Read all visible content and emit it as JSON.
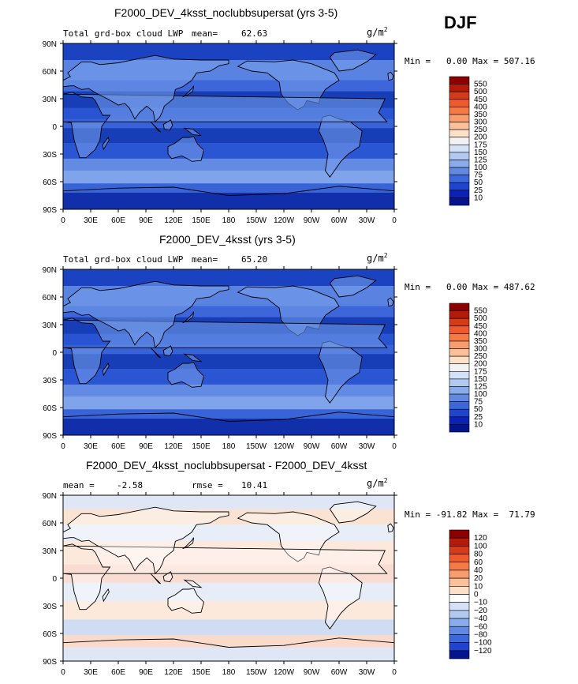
{
  "season": "DJF",
  "xticks": [
    "0",
    "30E",
    "60E",
    "90E",
    "120E",
    "150E",
    "180",
    "150W",
    "120W",
    "90W",
    "60W",
    "30W",
    "0"
  ],
  "yticks": [
    "90N",
    "60N",
    "30N",
    "0",
    "30S",
    "60S",
    "90S"
  ],
  "panels": [
    {
      "title": "F2000_DEV_4ksst_noclubbsupersat (yrs 3-5)",
      "left_label": "Total grd-box cloud LWP",
      "mean_label": "mean=",
      "mean_value": "62.63",
      "units": "g/m",
      "units_sup": "2",
      "minmax": "Min =   0.00 Max = 507.16",
      "colorbar_labels": [
        "550",
        "500",
        "450",
        "400",
        "350",
        "300",
        "250",
        "200",
        "175",
        "150",
        "125",
        "100",
        "75",
        "50",
        "25",
        "10"
      ],
      "colorbar_colors": [
        "#8c0000",
        "#b41a0a",
        "#d63b18",
        "#ee5a2c",
        "#f67a48",
        "#f99c6e",
        "#fbc09a",
        "#fde0c8",
        "#f2f2f2",
        "#d5e1f6",
        "#b2c9f1",
        "#8bacec",
        "#6189e4",
        "#3d67dc",
        "#1f44cf",
        "#0b23b4",
        "#04148c"
      ]
    },
    {
      "title": "F2000_DEV_4ksst (yrs 3-5)",
      "left_label": "Total grd-box cloud LWP",
      "mean_label": "mean=",
      "mean_value": "65.20",
      "units": "g/m",
      "units_sup": "2",
      "minmax": "Min =   0.00 Max = 487.62",
      "colorbar_labels": [
        "550",
        "500",
        "450",
        "400",
        "350",
        "300",
        "250",
        "200",
        "175",
        "150",
        "125",
        "100",
        "75",
        "50",
        "25",
        "10"
      ],
      "colorbar_colors": [
        "#8c0000",
        "#b41a0a",
        "#d63b18",
        "#ee5a2c",
        "#f67a48",
        "#f99c6e",
        "#fbc09a",
        "#fde0c8",
        "#f2f2f2",
        "#d5e1f6",
        "#b2c9f1",
        "#8bacec",
        "#6189e4",
        "#3d67dc",
        "#1f44cf",
        "#0b23b4",
        "#04148c"
      ]
    },
    {
      "title": "F2000_DEV_4ksst_noclubbsupersat - F2000_DEV_4ksst",
      "mean_label": "mean =",
      "mean_value": "-2.58",
      "rmse_label": "rmse =",
      "rmse_value": "10.41",
      "units": "g/m",
      "units_sup": "2",
      "minmax": "Min = -91.82 Max =  71.79",
      "colorbar_labels": [
        "120",
        "100",
        "80",
        "60",
        "40",
        "20",
        "10",
        "0",
        "−10",
        "−20",
        "−40",
        "−60",
        "−80",
        "−100",
        "−120"
      ],
      "colorbar_colors": [
        "#8c0000",
        "#b41a0a",
        "#d63b18",
        "#ee5a2c",
        "#f67a48",
        "#f99c6e",
        "#fbc09a",
        "#fde0c8",
        "#ffffff",
        "#d5e1f6",
        "#b2c9f1",
        "#8bacec",
        "#6189e4",
        "#3d67dc",
        "#1f44cf",
        "#04148c"
      ]
    }
  ]
}
